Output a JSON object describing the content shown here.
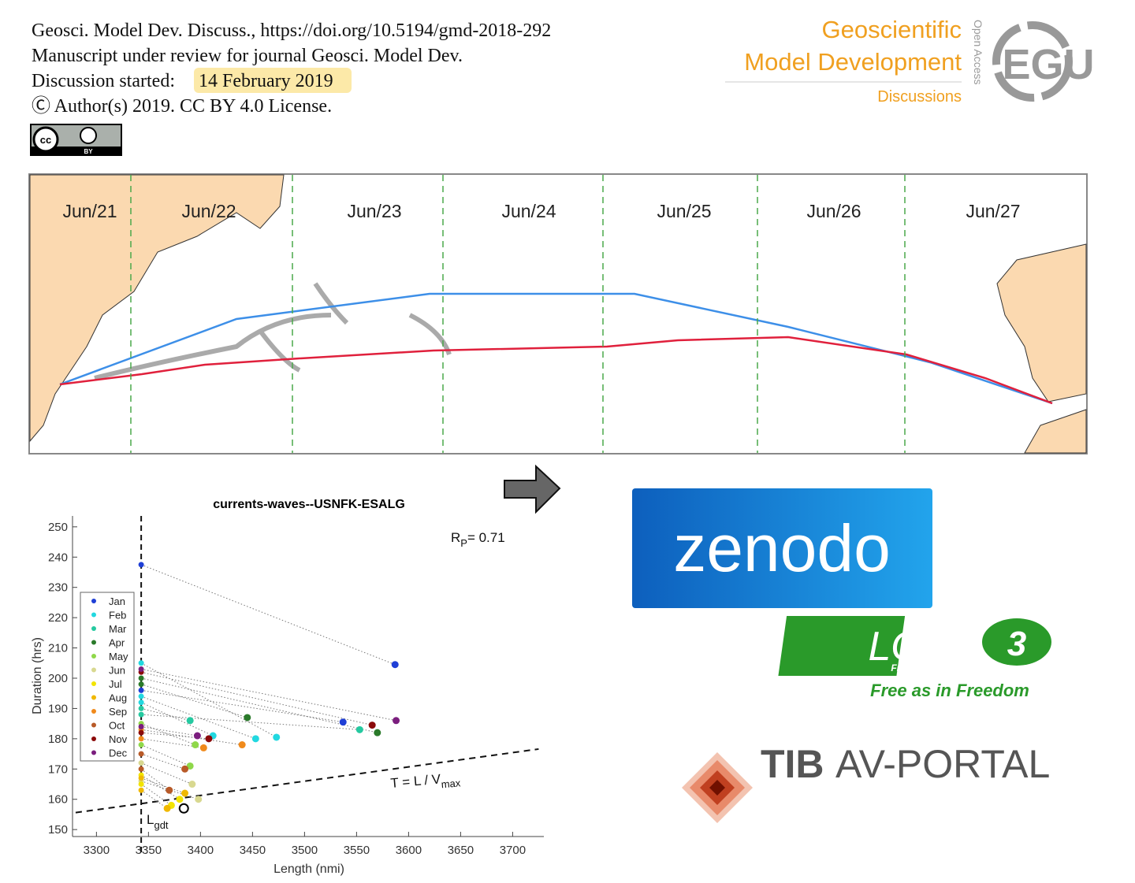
{
  "header": {
    "lines": [
      "Geosci. Model Dev. Discuss., https://doi.org/10.5194/gmd-2018-292",
      "Manuscript under review for journal Geosci. Model Dev."
    ],
    "discussion_label": "Discussion started:",
    "discussion_date": "14 February 2019",
    "license": "Ⓒ Author(s) 2019. CC BY 4.0 License.",
    "cc_badge": [
      "cc",
      "BY"
    ]
  },
  "journal_logo": {
    "name_lines": [
      "Geoscientific",
      "Model Development"
    ],
    "section": "Discussions",
    "open_access": "Open Access",
    "publisher": "EGU"
  },
  "map": {
    "days": [
      "Jun/21",
      "Jun/22",
      "Jun/23",
      "Jun/24",
      "Jun/25",
      "Jun/26",
      "Jun/27"
    ]
  },
  "chart_data": {
    "type": "scatter",
    "title": "currents-waves--USNFK-ESALG",
    "xlabel": "Length (nmi)",
    "ylabel": "Duration (hrs)",
    "xlim": [
      3277,
      3730
    ],
    "ylim": [
      147.7,
      253.6
    ],
    "xticks": [
      3300,
      3350,
      3400,
      3450,
      3500,
      3550,
      3600,
      3650,
      3700
    ],
    "yticks": [
      150,
      160,
      170,
      180,
      190,
      200,
      210,
      220,
      230,
      240,
      250
    ],
    "gdt_length": 3343,
    "vmax_line": {
      "x": [
        3280,
        3725
      ],
      "y": [
        155.6,
        176.6
      ]
    },
    "highlight": {
      "x": 3384,
      "y": 157
    },
    "annotations": [
      {
        "main": "R",
        "sub": "P",
        "tail": "= 0.71"
      },
      {
        "main": "T = L / V",
        "sub": "max"
      },
      {
        "main": "L",
        "sub": "gdt"
      }
    ],
    "series": [
      {
        "name": "Jan",
        "color": "#1f3fd6",
        "x": [
          3587,
          3537
        ],
        "values": [
          204.5,
          185.5
        ],
        "gdt_values": [
          237.5,
          196
        ]
      },
      {
        "name": "Feb",
        "color": "#22d8e0",
        "x": [
          3473,
          3453,
          3412
        ],
        "values": [
          180.5,
          180,
          181
        ],
        "gdt_values": [
          205,
          194,
          192
        ]
      },
      {
        "name": "Mar",
        "color": "#25c9a0",
        "x": [
          3390,
          3553
        ],
        "values": [
          186,
          183
        ],
        "gdt_values": [
          190,
          188
        ]
      },
      {
        "name": "Apr",
        "color": "#2a7a2a",
        "x": [
          3445,
          3570
        ],
        "values": [
          187,
          182
        ],
        "gdt_values": [
          198,
          200
        ]
      },
      {
        "name": "May",
        "color": "#8fd84a",
        "x": [
          3395,
          3390
        ],
        "values": [
          178,
          171
        ],
        "gdt_values": [
          185,
          178
        ]
      },
      {
        "name": "Jun",
        "color": "#d8d890",
        "x": [
          3392,
          3398
        ],
        "values": [
          165,
          160
        ],
        "gdt_values": [
          172,
          166
        ]
      },
      {
        "name": "Jul",
        "color": "#f2e400",
        "x": [
          3380,
          3372
        ],
        "values": [
          160,
          158
        ],
        "gdt_values": [
          168,
          165
        ]
      },
      {
        "name": "Aug",
        "color": "#f0b800",
        "x": [
          3368,
          3385
        ],
        "values": [
          157,
          162
        ],
        "gdt_values": [
          163,
          167
        ]
      },
      {
        "name": "Sep",
        "color": "#f08a1c",
        "x": [
          3440,
          3403
        ],
        "values": [
          178,
          177
        ],
        "gdt_values": [
          183,
          180
        ]
      },
      {
        "name": "Oct",
        "color": "#b85a28",
        "x": [
          3370,
          3385
        ],
        "values": [
          163,
          170
        ],
        "gdt_values": [
          170,
          175
        ]
      },
      {
        "name": "Nov",
        "color": "#8b0a0a",
        "x": [
          3565,
          3408
        ],
        "values": [
          184.5,
          180
        ],
        "gdt_values": [
          202,
          182
        ]
      },
      {
        "name": "Dec",
        "color": "#7b1e7e",
        "x": [
          3588,
          3397
        ],
        "values": [
          186,
          181
        ],
        "gdt_values": [
          203,
          184
        ]
      }
    ]
  },
  "zenodo": {
    "text": "zenodo"
  },
  "lgpl": {
    "text": "LGPL",
    "version": "3",
    "subtitle": "Free Software",
    "slogan": "Free as in Freedom"
  },
  "tib": {
    "bold": "TIB",
    "rest": "AV-PORTAL"
  }
}
